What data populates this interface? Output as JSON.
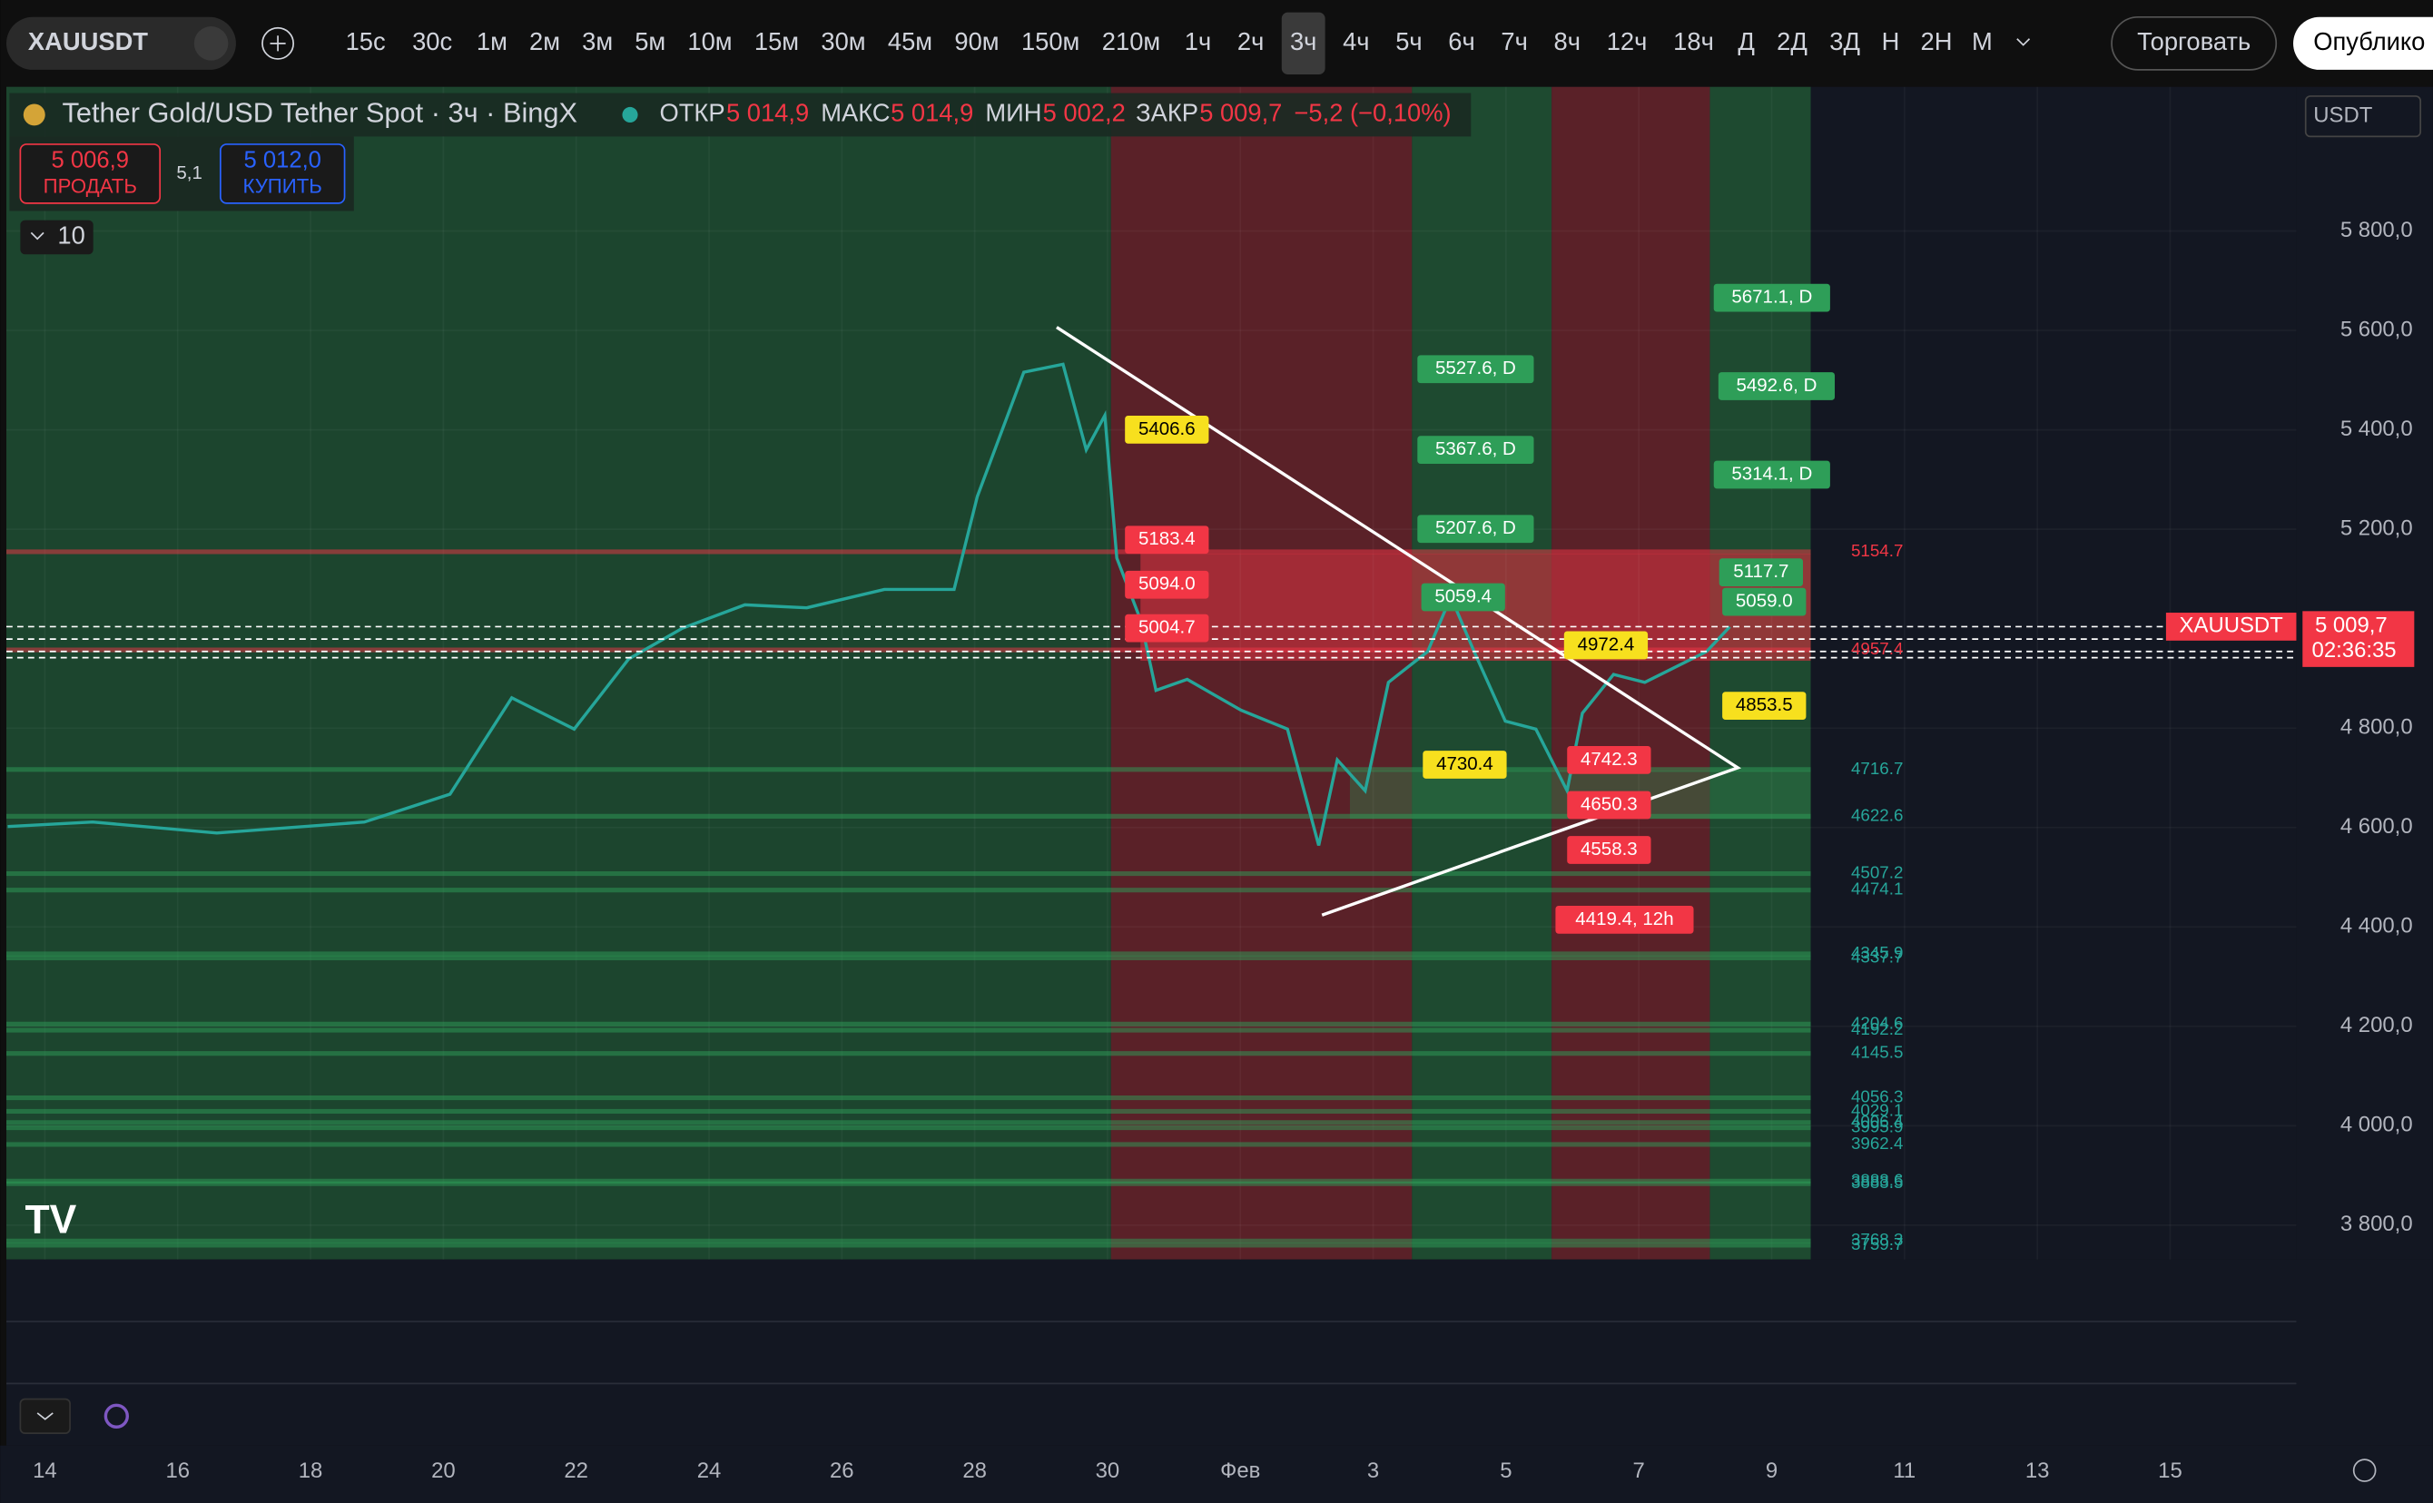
{
  "toolbar": {
    "symbol": "XAUUSDT",
    "timeframes": [
      "15с",
      "30с",
      "1м",
      "2м",
      "3м",
      "5м",
      "10м",
      "15м",
      "30м",
      "45м",
      "90м",
      "150м",
      "210м",
      "1ч",
      "2ч",
      "3ч",
      "4ч",
      "5ч",
      "6ч",
      "7ч",
      "8ч",
      "12ч",
      "18ч",
      "Д",
      "2Д",
      "3Д",
      "Н",
      "2Н",
      "М"
    ],
    "active": "3ч",
    "trade": "Торговать",
    "publish": "Опублико"
  },
  "legend": {
    "title": "Tether Gold/USD Tether Spot · 3ч · BingX",
    "open_label": "ОТКР",
    "open": "5 014,9",
    "high_label": "МАКС",
    "high": "5 014,9",
    "low_label": "МИН",
    "low": "5 002,2",
    "close_label": "ЗАКР",
    "close": "5 009,7",
    "change": "−5,2 (−0,10%)"
  },
  "trade": {
    "sell_price": "5 006,9",
    "sell": "ПРОДАТЬ",
    "spread": "5,1",
    "buy_price": "5 012,0",
    "buy": "КУПИТЬ"
  },
  "indicators_count": "10",
  "currency": "USDT",
  "chart": {
    "ylim": [
      3731,
      6090
    ],
    "yticks": [
      {
        "value": 5800,
        "label": "5 800,0"
      },
      {
        "value": 5600,
        "label": "5 600,0"
      },
      {
        "value": 5400,
        "label": "5 400,0"
      },
      {
        "value": 5200,
        "label": "5 200,0"
      },
      {
        "value": 4800,
        "label": "4 800,0"
      },
      {
        "value": 4600,
        "label": "4 600,0"
      },
      {
        "value": 4400,
        "label": "4 400,0"
      },
      {
        "value": 4200,
        "label": "4 200,0"
      },
      {
        "value": 4000,
        "label": "4 000,0"
      },
      {
        "value": 3800,
        "label": "3 800,0"
      }
    ],
    "xlim": [
      -0.58,
      33.9
    ],
    "xticks": [
      {
        "value": 0,
        "label": "14"
      },
      {
        "value": 2,
        "label": "16"
      },
      {
        "value": 4,
        "label": "18"
      },
      {
        "value": 6,
        "label": "20"
      },
      {
        "value": 8,
        "label": "22"
      },
      {
        "value": 10,
        "label": "24"
      },
      {
        "value": 12,
        "label": "26"
      },
      {
        "value": 14,
        "label": "28"
      },
      {
        "value": 16,
        "label": "30"
      },
      {
        "value": 18,
        "label": "Фев"
      },
      {
        "value": 20,
        "label": "3"
      },
      {
        "value": 22,
        "label": "5"
      },
      {
        "value": 24,
        "label": "7"
      },
      {
        "value": 26,
        "label": "9"
      },
      {
        "value": 28,
        "label": "11"
      },
      {
        "value": 30,
        "label": "13"
      },
      {
        "value": 32,
        "label": "15"
      }
    ],
    "price": {
      "color": "#26a69a",
      "x": [
        -0.56,
        0.72,
        2.59,
        4.81,
        6.1,
        7.03,
        7.97,
        8.79,
        9.6,
        10.54,
        11.47,
        12.64,
        13.69,
        14.04,
        14.74,
        15.33,
        15.68,
        15.96,
        16.14,
        16.5,
        16.73,
        17.2,
        18.01,
        18.71,
        19.18,
        19.46,
        19.88,
        20.23,
        20.82,
        21.17,
        21.52,
        21.99,
        22.45,
        22.92,
        23.15,
        23.62,
        24.09,
        25.02,
        25.37
      ],
      "values": [
        4602,
        4611,
        4589,
        4611,
        4667,
        4861,
        4798,
        4939,
        5001,
        5048,
        5042,
        5079,
        5079,
        5266,
        5516,
        5532,
        5360,
        5429,
        5142,
        5017,
        4876,
        4898,
        4836,
        4798,
        4564,
        4736,
        4674,
        4892,
        4954,
        5064,
        4954,
        4814,
        4798,
        4674,
        4830,
        4908,
        4892,
        4954,
        5004
      ]
    },
    "levels": [
      5154.7,
      4957.4,
      4716.7,
      4622.6,
      4507.2,
      4474.1,
      4345.9,
      4337.7,
      4204.6,
      4192.2,
      4145.5,
      4056.3,
      4029.1,
      4006.4,
      3995.9,
      3962.4,
      3888.6,
      3883.5,
      3768.3,
      3759.7
    ],
    "tags": [
      "5406.6",
      "5183.4",
      "5094.0",
      "5004.7",
      "5527.6, D",
      "5367.6, D",
      "5207.6, D",
      "5059.4",
      "4972.4",
      "4730.4",
      "4742.3",
      "4650.3",
      "4558.3",
      "4419.4, 12h",
      "5671.1, D",
      "5492.6, D",
      "5314.1, D",
      "5117.7",
      "5059.0",
      "4853.5"
    ],
    "last": {
      "symbol": "XAUUSDT",
      "price": "5 009,7",
      "countdown": "02:36:35"
    }
  }
}
